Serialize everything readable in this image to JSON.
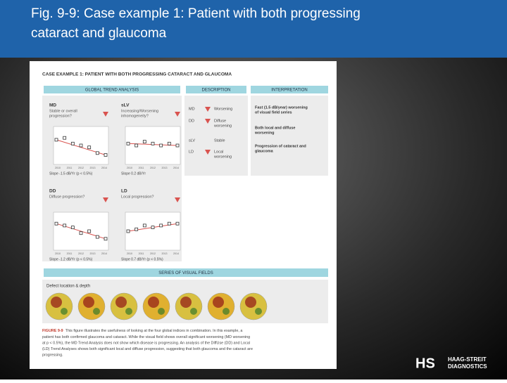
{
  "header": {
    "title_lines": [
      "Fig. 9-9: Case example 1: Patient with both progressing",
      "cataract and glaucoma"
    ]
  },
  "figure": {
    "title": "CASE EXAMPLE 1: PATIENT WITH BOTH PROGRESSING CATARACT AND GLAUCOMA",
    "sections": [
      "GLOBAL TREND ANALYSIS",
      "DESCRIPTION",
      "INTERPRETATION"
    ],
    "panels": [
      {
        "name": "MD",
        "question": [
          "Stable or overall",
          "progression?"
        ],
        "slope": "Slope -1.5 dB/Yr (p < 0.5%)"
      },
      {
        "name": "sLV",
        "question": [
          "Increasing/Worsening",
          "inhomogeneity?"
        ],
        "slope": "Slope 0.2 dB/Yr"
      },
      {
        "name": "DD",
        "question": [
          "Diffuse progression?"
        ],
        "slope": "Slope -1.2 dB/Yr (p < 0.5%)"
      },
      {
        "name": "LD",
        "question": [
          "Local progression?"
        ],
        "slope": "Slope 0.7 dB/Yr (p < 0.5%)"
      }
    ],
    "years": [
      "2010",
      "2011",
      "2012",
      "2013",
      "2014"
    ],
    "description": [
      {
        "code": "MD",
        "text": [
          "Worsening"
        ]
      },
      {
        "code": "DD",
        "text": [
          "Diffuse",
          "worsening"
        ]
      },
      {
        "code": "sLV",
        "text": [
          "Stable"
        ]
      },
      {
        "code": "LD",
        "text": [
          "Local",
          "worsening"
        ]
      }
    ],
    "interpretation": [
      [
        "Fast (1.5 dB/year) worsening",
        "of visual field series"
      ],
      [
        "Both local and diffuse",
        "worsening"
      ],
      [
        "Progression of cataract and",
        "glaucoma"
      ]
    ],
    "series_title": "SERIES OF VISUAL FIELDS",
    "series_label": "Defect location & depth",
    "caption": {
      "label": "FIGURE 9-9",
      "lines": [
        "This figure illustrates the usefulness of looking at the four global indices in combination. In this example, a",
        "patient has both confirmed glaucoma and cataract. While the visual field shows overall significant worsening (MD worsening",
        "at p < 0.5%), the MD Trend Analysis does not show which disease is progressing. An analysis of the DiffUse (DD) and Local",
        "(LD) Trend Analyses shows both significant local and diffuse progression, suggesting that both glaucoma and the cataract are",
        "progressing."
      ]
    }
  },
  "logo": {
    "mark": "HS",
    "lines": [
      "HAAG-STREIT",
      "DIAGNOSTICS"
    ]
  }
}
